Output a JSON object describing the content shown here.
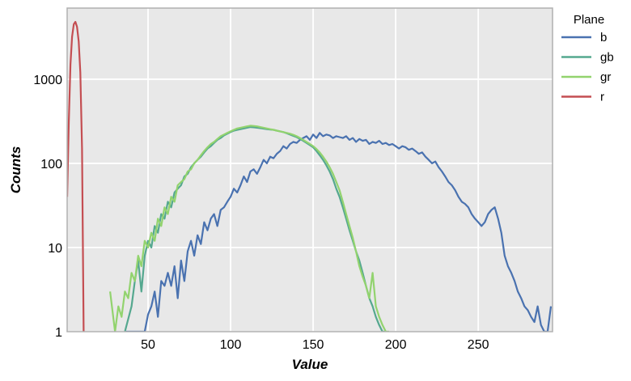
{
  "chart_data": {
    "type": "line",
    "title": "",
    "xlabel": "Value",
    "ylabel": "Counts",
    "xlim": [
      1,
      295
    ],
    "ylim": [
      1,
      7000
    ],
    "yscale": "log",
    "grid": true,
    "x_ticks": [
      50,
      100,
      150,
      200,
      250
    ],
    "y_ticks": [
      1,
      10,
      100,
      1000
    ],
    "y_tick_labels": [
      "1",
      "10",
      "100",
      "1000"
    ],
    "legend": {
      "title": "Plane",
      "placement": "outside-top-right"
    },
    "colors": {
      "background": "#e8e8e8",
      "grid": "#ffffff",
      "frame": "#b0b0b0"
    },
    "series": [
      {
        "name": "b",
        "color": "#4a72b0",
        "x": [
          36,
          48,
          50,
          52,
          54,
          56,
          58,
          60,
          62,
          64,
          66,
          68,
          70,
          72,
          74,
          76,
          78,
          80,
          82,
          84,
          86,
          88,
          90,
          92,
          94,
          96,
          98,
          100,
          102,
          104,
          106,
          108,
          110,
          112,
          114,
          116,
          118,
          120,
          122,
          124,
          126,
          128,
          130,
          132,
          134,
          136,
          138,
          140,
          142,
          144,
          146,
          148,
          150,
          152,
          154,
          156,
          158,
          160,
          162,
          164,
          166,
          168,
          170,
          172,
          174,
          176,
          178,
          180,
          182,
          184,
          186,
          188,
          190,
          192,
          194,
          196,
          198,
          200,
          202,
          204,
          206,
          208,
          210,
          212,
          214,
          216,
          218,
          220,
          222,
          224,
          226,
          228,
          230,
          232,
          234,
          236,
          238,
          240,
          242,
          244,
          246,
          248,
          250,
          252,
          254,
          256,
          258,
          260,
          262,
          264,
          266,
          268,
          270,
          272,
          274,
          276,
          278,
          280,
          282,
          284,
          286,
          288,
          290,
          292,
          294
        ],
        "y": [
          1,
          1,
          1.6,
          2,
          3,
          1.5,
          4,
          3.5,
          5,
          3.5,
          6,
          2.5,
          7,
          4,
          9,
          12,
          8,
          14,
          11,
          20,
          16,
          22,
          25,
          18,
          28,
          30,
          35,
          40,
          50,
          45,
          55,
          70,
          60,
          80,
          85,
          75,
          90,
          110,
          100,
          120,
          115,
          130,
          140,
          160,
          150,
          170,
          180,
          175,
          190,
          200,
          210,
          190,
          220,
          200,
          230,
          210,
          220,
          215,
          200,
          210,
          205,
          200,
          210,
          190,
          200,
          180,
          195,
          185,
          190,
          170,
          180,
          175,
          185,
          170,
          175,
          165,
          170,
          160,
          150,
          160,
          155,
          145,
          150,
          140,
          130,
          135,
          120,
          110,
          100,
          105,
          90,
          80,
          70,
          60,
          55,
          48,
          40,
          35,
          33,
          30,
          25,
          22,
          20,
          18,
          20,
          25,
          28,
          30,
          22,
          15,
          8,
          6,
          5,
          4,
          3,
          2.5,
          2,
          1.8,
          1.5,
          1.3,
          2,
          1.2,
          1,
          1,
          2
        ]
      },
      {
        "name": "gb",
        "color": "#55a88f",
        "x": [
          36,
          40,
          42,
          44,
          46,
          48,
          50,
          52,
          54,
          56,
          58,
          60,
          62,
          64,
          66,
          68,
          70,
          72,
          74,
          76,
          78,
          80,
          82,
          84,
          86,
          88,
          90,
          92,
          94,
          96,
          98,
          100,
          102,
          104,
          106,
          108,
          110,
          112,
          114,
          116,
          118,
          120,
          122,
          124,
          126,
          128,
          130,
          132,
          134,
          136,
          138,
          140,
          142,
          144,
          146,
          148,
          150,
          152,
          154,
          156,
          158,
          160,
          162,
          164,
          166,
          168,
          170,
          172,
          174,
          176,
          178,
          180,
          182,
          184,
          186,
          188,
          190,
          192,
          194
        ],
        "y": [
          1,
          2,
          4,
          7,
          3,
          8,
          12,
          10,
          18,
          15,
          25,
          22,
          35,
          30,
          45,
          50,
          55,
          70,
          75,
          90,
          100,
          110,
          120,
          135,
          150,
          160,
          175,
          190,
          200,
          215,
          225,
          235,
          245,
          250,
          255,
          260,
          265,
          270,
          268,
          265,
          262,
          258,
          255,
          252,
          250,
          245,
          240,
          235,
          228,
          220,
          212,
          205,
          195,
          185,
          175,
          165,
          155,
          140,
          125,
          110,
          95,
          80,
          65,
          50,
          40,
          30,
          22,
          16,
          12,
          9,
          7,
          5,
          3.5,
          2.5,
          2,
          1.5,
          1.2,
          1,
          1
        ]
      },
      {
        "name": "gr",
        "color": "#92d36e",
        "x": [
          27,
          30,
          32,
          34,
          36,
          38,
          40,
          42,
          44,
          46,
          48,
          50,
          52,
          54,
          56,
          58,
          60,
          62,
          64,
          66,
          68,
          70,
          72,
          74,
          76,
          78,
          80,
          82,
          84,
          86,
          88,
          90,
          92,
          94,
          96,
          98,
          100,
          102,
          104,
          106,
          108,
          110,
          112,
          114,
          116,
          118,
          120,
          122,
          124,
          126,
          128,
          130,
          132,
          134,
          136,
          138,
          140,
          142,
          144,
          146,
          148,
          150,
          152,
          154,
          156,
          158,
          160,
          162,
          164,
          166,
          168,
          170,
          172,
          174,
          176,
          178,
          180,
          182,
          184,
          186,
          188,
          190,
          192,
          194,
          196
        ],
        "y": [
          3,
          1,
          2,
          1.5,
          3,
          2.5,
          5,
          4,
          8,
          6,
          12,
          10,
          15,
          12,
          22,
          18,
          30,
          25,
          40,
          35,
          55,
          60,
          65,
          80,
          85,
          100,
          110,
          125,
          140,
          155,
          170,
          180,
          195,
          210,
          220,
          230,
          240,
          250,
          260,
          265,
          270,
          275,
          280,
          278,
          275,
          270,
          265,
          260,
          255,
          250,
          245,
          240,
          235,
          230,
          225,
          218,
          210,
          200,
          190,
          180,
          170,
          160,
          148,
          135,
          120,
          105,
          90,
          75,
          60,
          48,
          35,
          25,
          18,
          13,
          9,
          6,
          4.5,
          3.5,
          2.5,
          5,
          2,
          1.5,
          1.2,
          1,
          1
        ]
      },
      {
        "name": "r",
        "color": "#c44e52",
        "x": [
          1,
          2,
          3,
          4,
          5,
          6,
          7,
          8,
          9,
          10,
          11
        ],
        "y": [
          40,
          300,
          1500,
          3200,
          4500,
          4800,
          4200,
          2800,
          1200,
          150,
          1
        ]
      }
    ]
  }
}
